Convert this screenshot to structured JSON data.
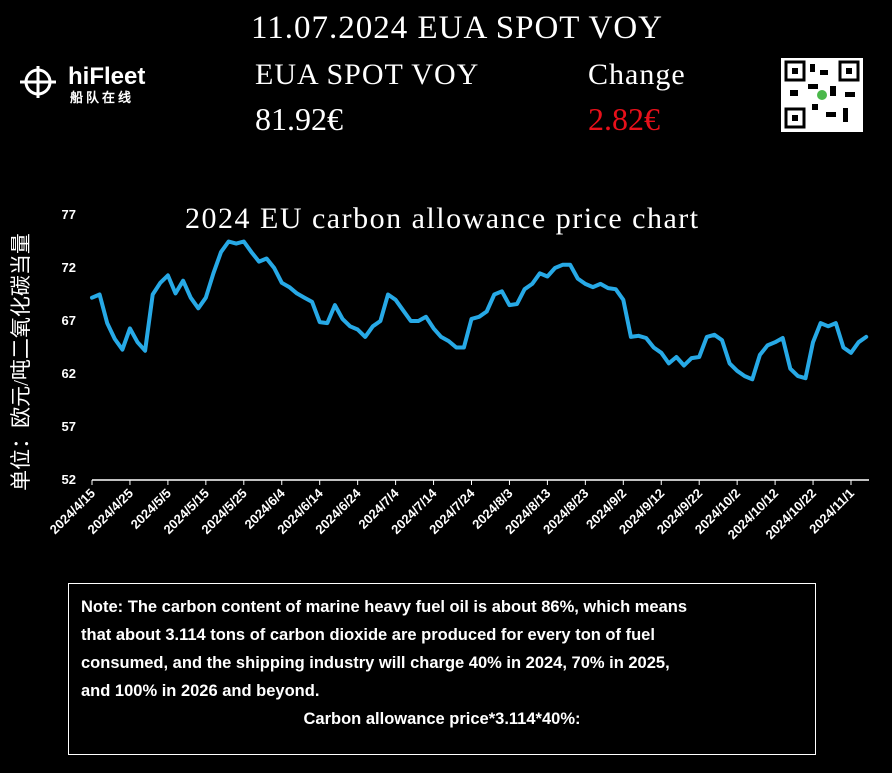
{
  "header": {
    "date_title": "11.07.2024 EUA SPOT VOY",
    "logo": "hiFleet",
    "logo_sub": "船队在线",
    "price_label": "EUA SPOT VOY",
    "price": "81.92€",
    "change_label": "Change",
    "change": "2.82€"
  },
  "chart_data": {
    "type": "line",
    "title": "2024 EU carbon allowance price chart",
    "y_label": "单位：欧元/吨二氧化碳当量",
    "color": "#27a9e6",
    "ylim": [
      52,
      77
    ],
    "yticks": [
      52,
      57,
      62,
      67,
      72,
      77
    ],
    "categories": [
      "2024/4/15",
      null,
      null,
      null,
      null,
      "2024/4/25",
      null,
      null,
      null,
      null,
      "2024/5/5",
      null,
      null,
      null,
      null,
      "2024/5/15",
      null,
      null,
      null,
      null,
      "2024/5/25",
      null,
      null,
      null,
      null,
      "2024/6/4",
      null,
      null,
      null,
      null,
      "2024/6/14",
      null,
      null,
      null,
      null,
      "2024/6/24",
      null,
      null,
      null,
      null,
      "2024/7/4",
      null,
      null,
      null,
      null,
      "2024/7/14",
      null,
      null,
      null,
      null,
      "2024/7/24",
      null,
      null,
      null,
      null,
      "2024/8/3",
      null,
      null,
      null,
      null,
      "2024/8/13",
      null,
      null,
      null,
      null,
      "2024/8/23",
      null,
      null,
      null,
      null,
      "2024/9/2",
      null,
      null,
      null,
      null,
      "2024/9/12",
      null,
      null,
      null,
      null,
      "2024/9/22",
      null,
      null,
      null,
      null,
      "2024/10/2",
      null,
      null,
      null,
      null,
      "2024/10/12",
      null,
      null,
      null,
      null,
      "2024/10/22",
      null,
      null,
      null,
      null,
      "2024/11/1",
      null,
      null
    ],
    "values": [
      69.2,
      69.5,
      66.8,
      65.3,
      64.3,
      66.3,
      65,
      64.2,
      69.5,
      70.6,
      71.3,
      69.6,
      70.8,
      69.2,
      68.2,
      69.2,
      71.5,
      73.5,
      74.5,
      74.3,
      74.5,
      73.5,
      72.6,
      72.9,
      72,
      70.6,
      70.2,
      69.6,
      69.2,
      68.8,
      66.9,
      66.8,
      68.5,
      67.2,
      66.5,
      66.2,
      65.5,
      66.5,
      67,
      69.5,
      69,
      68,
      67,
      67,
      67.4,
      66.3,
      65.5,
      65.1,
      64.5,
      64.5,
      67.2,
      67.4,
      67.9,
      69.5,
      69.8,
      68.5,
      68.6,
      70,
      70.5,
      71.5,
      71.2,
      72,
      72.3,
      72.3,
      71,
      70.5,
      70.2,
      70.5,
      70.1,
      70,
      69,
      65.5,
      65.6,
      65.4,
      64.5,
      64,
      63,
      63.6,
      62.8,
      63.5,
      63.6,
      65.5,
      65.7,
      65.2,
      63,
      62.3,
      61.8,
      61.5,
      63.8,
      64.7,
      65,
      65.4,
      62.5,
      61.8,
      61.6,
      65,
      66.8,
      66.5,
      66.8,
      64.5,
      64,
      65,
      65.5
    ]
  },
  "note": {
    "lines": [
      "Note: The carbon content of marine heavy fuel oil is about 86%, which means",
      "that about 3.114 tons of carbon dioxide are produced for every ton of fuel",
      "consumed, and the shipping industry will charge 40% in 2024, 70% in 2025,",
      "and 100% in 2026 and beyond."
    ],
    "formula": "Carbon allowance price*3.114*40%:"
  }
}
